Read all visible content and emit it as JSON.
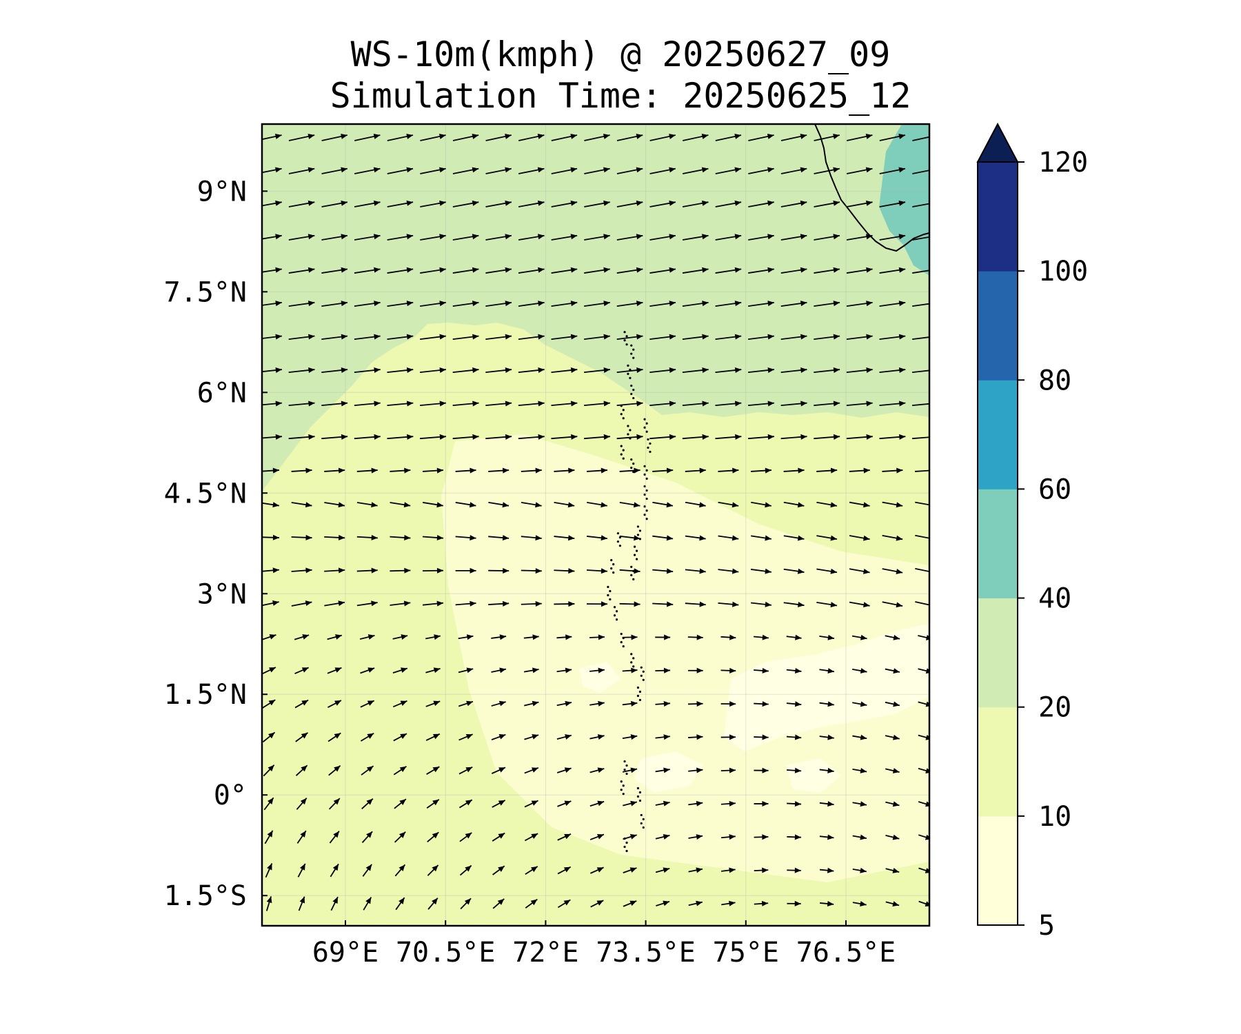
{
  "title": {
    "line1": "WS-10m(kmph) @ 20250627_09",
    "line2": "Simulation Time: 20250625_12"
  },
  "map": {
    "lon_range": [
      67.75,
      77.75
    ],
    "lat_range": [
      -1.95,
      10.0
    ],
    "lat_ticks": [
      {
        "value": 9,
        "label": "9°N"
      },
      {
        "value": 7.5,
        "label": "7.5°N"
      },
      {
        "value": 6,
        "label": "6°N"
      },
      {
        "value": 4.5,
        "label": "4.5°N"
      },
      {
        "value": 3,
        "label": "3°N"
      },
      {
        "value": 1.5,
        "label": "1.5°N"
      },
      {
        "value": 0,
        "label": "0°"
      },
      {
        "value": -1.5,
        "label": "1.5°S"
      }
    ],
    "lon_ticks": [
      {
        "value": 69,
        "label": "69°E"
      },
      {
        "value": 70.5,
        "label": "70.5°E"
      },
      {
        "value": 72,
        "label": "72°E"
      },
      {
        "value": 73.5,
        "label": "73.5°E"
      },
      {
        "value": 75,
        "label": "75°E"
      },
      {
        "value": 76.5,
        "label": "76.5°E"
      }
    ],
    "colors": {
      "c5_10": "#ffffd9",
      "c10_20": "#edf8b1",
      "c20_40": "#d0ecb4",
      "c40_60": "#7fcdbb",
      "c60_80": "#2fa3c6",
      "c80_100": "#2465ac",
      "c100_120": "#1d2f84",
      "c_over": "#0c1f55",
      "calm": "#ffffff"
    }
  },
  "colorbar": {
    "levels": [
      5,
      10,
      20,
      40,
      60,
      80,
      100,
      120
    ],
    "labels": [
      "5",
      "10",
      "20",
      "40",
      "60",
      "80",
      "100",
      "120"
    ],
    "colors": [
      "#ffffd9",
      "#edf8b1",
      "#d0ecb4",
      "#7fcdbb",
      "#2fa3c6",
      "#2465ac",
      "#1d2f84"
    ],
    "extend_color": "#0c1f55",
    "extend": "max"
  }
}
